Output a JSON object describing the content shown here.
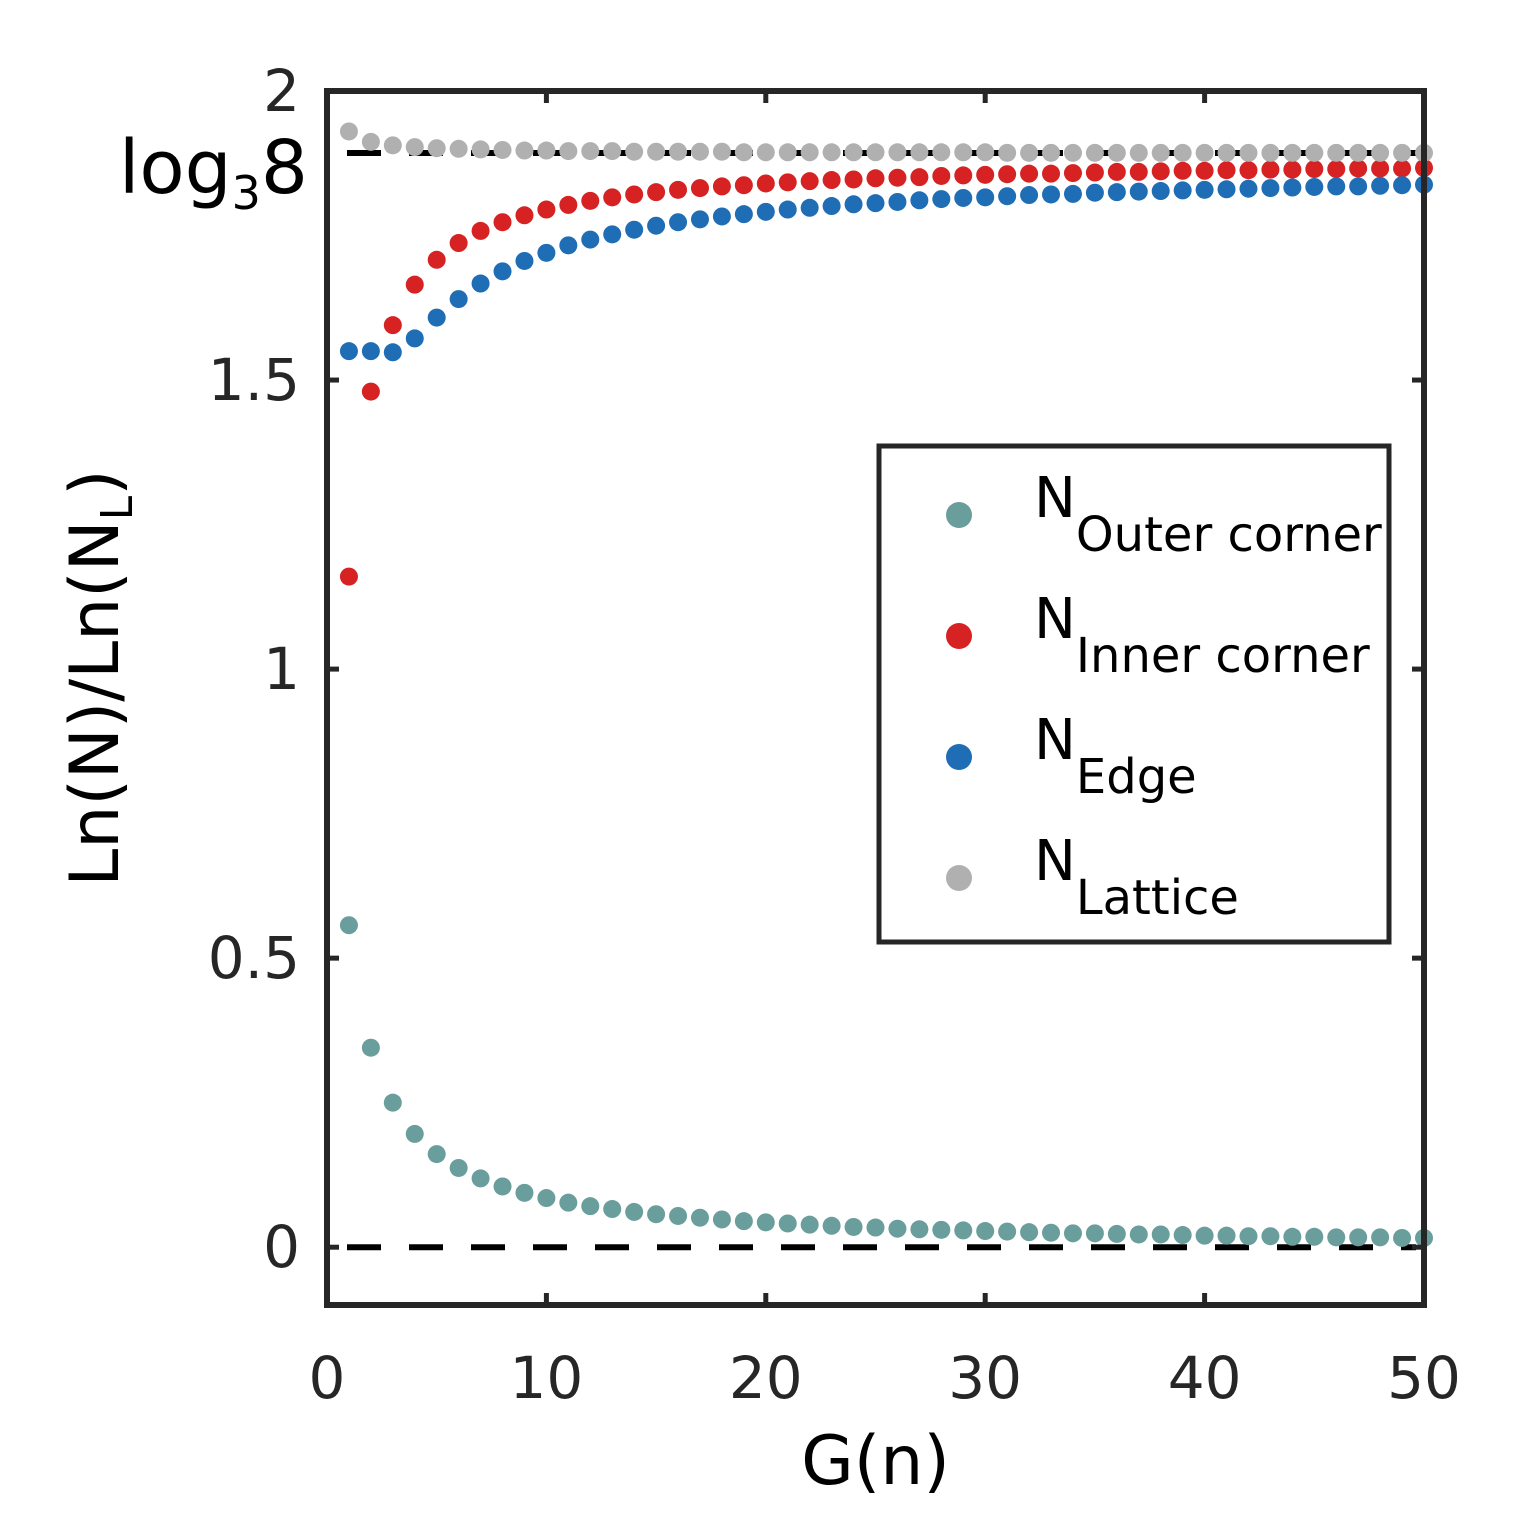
{
  "chart_data": {
    "type": "scatter",
    "xlabel": "G(n)",
    "ylabel": {
      "main": "Ln(N)/Ln(N",
      "sub": "L",
      "close": ")"
    },
    "xlim": [
      0,
      50
    ],
    "ylim": [
      -0.1,
      2.0
    ],
    "xticks": [
      0,
      10,
      20,
      30,
      40,
      50
    ],
    "yticks": [
      0,
      0.5,
      1,
      1.5,
      2
    ],
    "ytick_labels": [
      "0",
      "0.5",
      "1",
      "1.5",
      "2"
    ],
    "reference_lines": [
      {
        "y": 1.8928,
        "style": "dashed",
        "label_main": "log",
        "label_sub": "3",
        "label_tail": "8"
      },
      {
        "y": 0,
        "style": "dashed"
      }
    ],
    "legend": {
      "position": "center-right"
    },
    "series": [
      {
        "name_main": "N",
        "name_sub": "Outer corner",
        "color": "#6a9e9c",
        "x": [
          1,
          2,
          3,
          4,
          5,
          6,
          7,
          8,
          9,
          10,
          11,
          12,
          13,
          14,
          15,
          16,
          17,
          18,
          19,
          20,
          21,
          22,
          23,
          24,
          25,
          26,
          27,
          28,
          29,
          30,
          31,
          32,
          33,
          34,
          35,
          36,
          37,
          38,
          39,
          40,
          41,
          42,
          43,
          44,
          45,
          46,
          47,
          48,
          49,
          50
        ],
        "y": [
          0.557,
          0.345,
          0.25,
          0.196,
          0.161,
          0.137,
          0.119,
          0.105,
          0.094,
          0.085,
          0.077,
          0.071,
          0.066,
          0.061,
          0.057,
          0.054,
          0.051,
          0.048,
          0.045,
          0.043,
          0.041,
          0.039,
          0.037,
          0.035,
          0.034,
          0.032,
          0.031,
          0.03,
          0.029,
          0.028,
          0.027,
          0.026,
          0.025,
          0.024,
          0.024,
          0.023,
          0.022,
          0.022,
          0.021,
          0.02,
          0.02,
          0.019,
          0.019,
          0.018,
          0.018,
          0.017,
          0.017,
          0.017,
          0.016,
          0.016
        ]
      },
      {
        "name_main": "N",
        "name_sub": "Inner corner",
        "color": "#d62222",
        "x": [
          1,
          2,
          3,
          4,
          5,
          6,
          7,
          8,
          9,
          10,
          11,
          12,
          13,
          14,
          15,
          16,
          17,
          18,
          19,
          20,
          21,
          22,
          23,
          24,
          25,
          26,
          27,
          28,
          29,
          30,
          31,
          32,
          33,
          34,
          35,
          36,
          37,
          38,
          39,
          40,
          41,
          42,
          43,
          44,
          45,
          46,
          47,
          48,
          49,
          50
        ],
        "y": [
          1.16,
          1.48,
          1.595,
          1.665,
          1.708,
          1.737,
          1.758,
          1.773,
          1.785,
          1.795,
          1.803,
          1.81,
          1.816,
          1.821,
          1.825,
          1.829,
          1.832,
          1.835,
          1.837,
          1.84,
          1.842,
          1.844,
          1.846,
          1.847,
          1.849,
          1.85,
          1.851,
          1.853,
          1.854,
          1.855,
          1.856,
          1.857,
          1.857,
          1.858,
          1.859,
          1.86,
          1.86,
          1.861,
          1.862,
          1.862,
          1.863,
          1.863,
          1.864,
          1.864,
          1.865,
          1.865,
          1.866,
          1.866,
          1.866,
          1.867
        ]
      },
      {
        "name_main": "N",
        "name_sub": "Edge",
        "color": "#1f6db5",
        "x": [
          1,
          2,
          3,
          4,
          5,
          6,
          7,
          8,
          9,
          10,
          11,
          12,
          13,
          14,
          15,
          16,
          17,
          18,
          19,
          20,
          21,
          22,
          23,
          24,
          25,
          26,
          27,
          28,
          29,
          30,
          31,
          32,
          33,
          34,
          35,
          36,
          37,
          38,
          39,
          40,
          41,
          42,
          43,
          44,
          45,
          46,
          47,
          48,
          49,
          50
        ],
        "y": [
          1.55,
          1.55,
          1.548,
          1.572,
          1.608,
          1.64,
          1.667,
          1.688,
          1.706,
          1.72,
          1.733,
          1.743,
          1.752,
          1.76,
          1.767,
          1.773,
          1.778,
          1.783,
          1.787,
          1.791,
          1.795,
          1.798,
          1.801,
          1.804,
          1.806,
          1.808,
          1.811,
          1.813,
          1.815,
          1.816,
          1.818,
          1.82,
          1.821,
          1.822,
          1.824,
          1.825,
          1.826,
          1.827,
          1.828,
          1.829,
          1.83,
          1.831,
          1.832,
          1.833,
          1.834,
          1.835,
          1.835,
          1.836,
          1.837,
          1.838
        ]
      },
      {
        "name_main": "N",
        "name_sub": "Lattice",
        "color": "#b0b0b0",
        "x": [
          1,
          2,
          3,
          4,
          5,
          6,
          7,
          8,
          9,
          10,
          11,
          12,
          13,
          14,
          15,
          16,
          17,
          18,
          19,
          20,
          21,
          22,
          23,
          24,
          25,
          26,
          27,
          28,
          29,
          30,
          31,
          32,
          33,
          34,
          35,
          36,
          37,
          38,
          39,
          40,
          41,
          42,
          43,
          44,
          45,
          46,
          47,
          48,
          49,
          50
        ],
        "y": [
          1.93,
          1.912,
          1.906,
          1.903,
          1.901,
          1.9,
          1.899,
          1.898,
          1.897,
          1.897,
          1.896,
          1.896,
          1.896,
          1.895,
          1.895,
          1.895,
          1.895,
          1.895,
          1.894,
          1.894,
          1.894,
          1.894,
          1.894,
          1.894,
          1.894,
          1.894,
          1.894,
          1.894,
          1.894,
          1.894,
          1.893,
          1.893,
          1.893,
          1.893,
          1.893,
          1.893,
          1.893,
          1.893,
          1.893,
          1.893,
          1.893,
          1.893,
          1.893,
          1.893,
          1.893,
          1.893,
          1.893,
          1.893,
          1.893,
          1.893
        ]
      }
    ]
  }
}
